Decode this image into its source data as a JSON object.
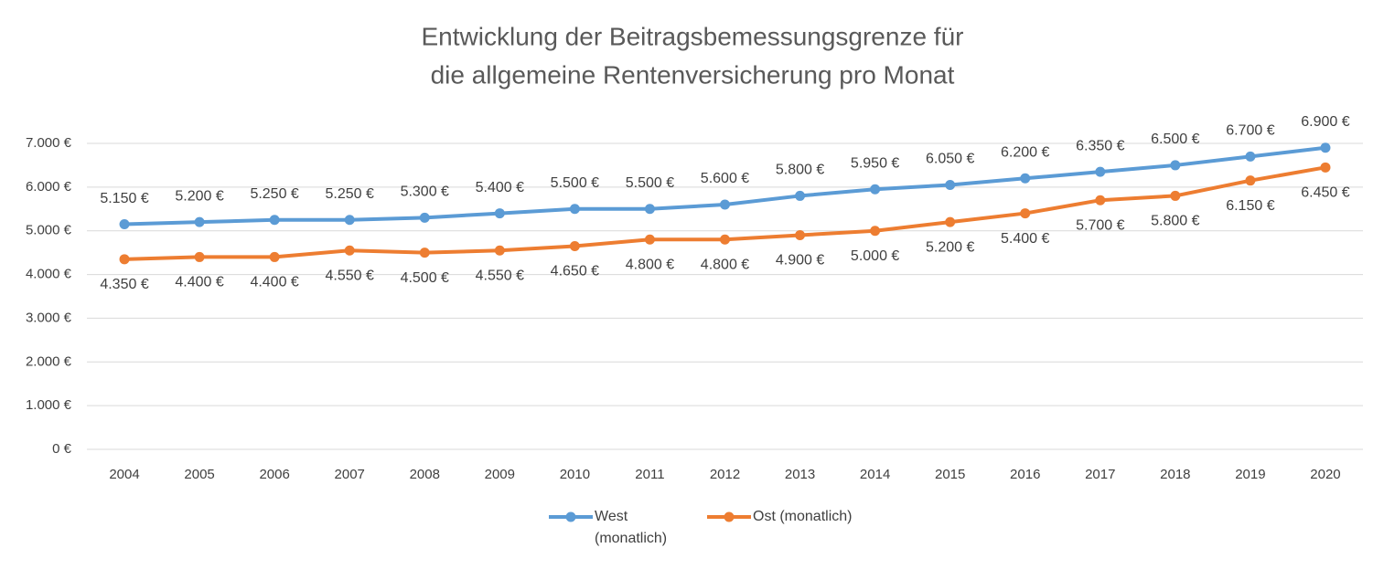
{
  "chart_data": {
    "type": "line",
    "title": [
      "Entwicklung der Beitragsbemessungsgrenze für",
      "die allgemeine Rentenversicherung pro Monat"
    ],
    "categories": [
      "2004",
      "2005",
      "2006",
      "2007",
      "2008",
      "2009",
      "2010",
      "2011",
      "2012",
      "2013",
      "2014",
      "2015",
      "2016",
      "2017",
      "2018",
      "2019",
      "2020"
    ],
    "series": [
      {
        "name": "West (monatlich)",
        "color": "#5b9bd5",
        "values": [
          5150,
          5200,
          5250,
          5250,
          5300,
          5400,
          5500,
          5500,
          5600,
          5800,
          5950,
          6050,
          6200,
          6350,
          6500,
          6700,
          6900
        ],
        "value_labels": [
          "5.150 €",
          "5.200 €",
          "5.250 €",
          "5.250 €",
          "5.300 €",
          "5.400 €",
          "5.500 €",
          "5.500 €",
          "5.600 €",
          "5.800 €",
          "5.950 €",
          "6.050 €",
          "6.200 €",
          "6.350 €",
          "6.500 €",
          "6.700 €",
          "6.900 €"
        ]
      },
      {
        "name": "Ost (monatlich)",
        "color": "#ed7d31",
        "values": [
          4350,
          4400,
          4400,
          4550,
          4500,
          4550,
          4650,
          4800,
          4800,
          4900,
          5000,
          5200,
          5400,
          5700,
          5800,
          6150,
          6450
        ],
        "value_labels": [
          "4.350 €",
          "4.400 €",
          "4.400 €",
          "4.550 €",
          "4.500 €",
          "4.550 €",
          "4.650 €",
          "4.800 €",
          "4.800 €",
          "4.900 €",
          "5.000 €",
          "5.200 €",
          "5.400 €",
          "5.700 €",
          "5.800 €",
          "6.150 €",
          "6.450 €"
        ]
      }
    ],
    "ylim": [
      0,
      7000
    ],
    "yticks": [
      {
        "value": 0,
        "label": "0 €"
      },
      {
        "value": 1000,
        "label": "1.000 €"
      },
      {
        "value": 2000,
        "label": "2.000 €"
      },
      {
        "value": 3000,
        "label": "3.000 €"
      },
      {
        "value": 4000,
        "label": "4.000 €"
      },
      {
        "value": 5000,
        "label": "5.000 €"
      },
      {
        "value": 6000,
        "label": "6.000 €"
      },
      {
        "value": 7000,
        "label": "7.000 €"
      }
    ],
    "grid": true,
    "legend": "bottom"
  }
}
